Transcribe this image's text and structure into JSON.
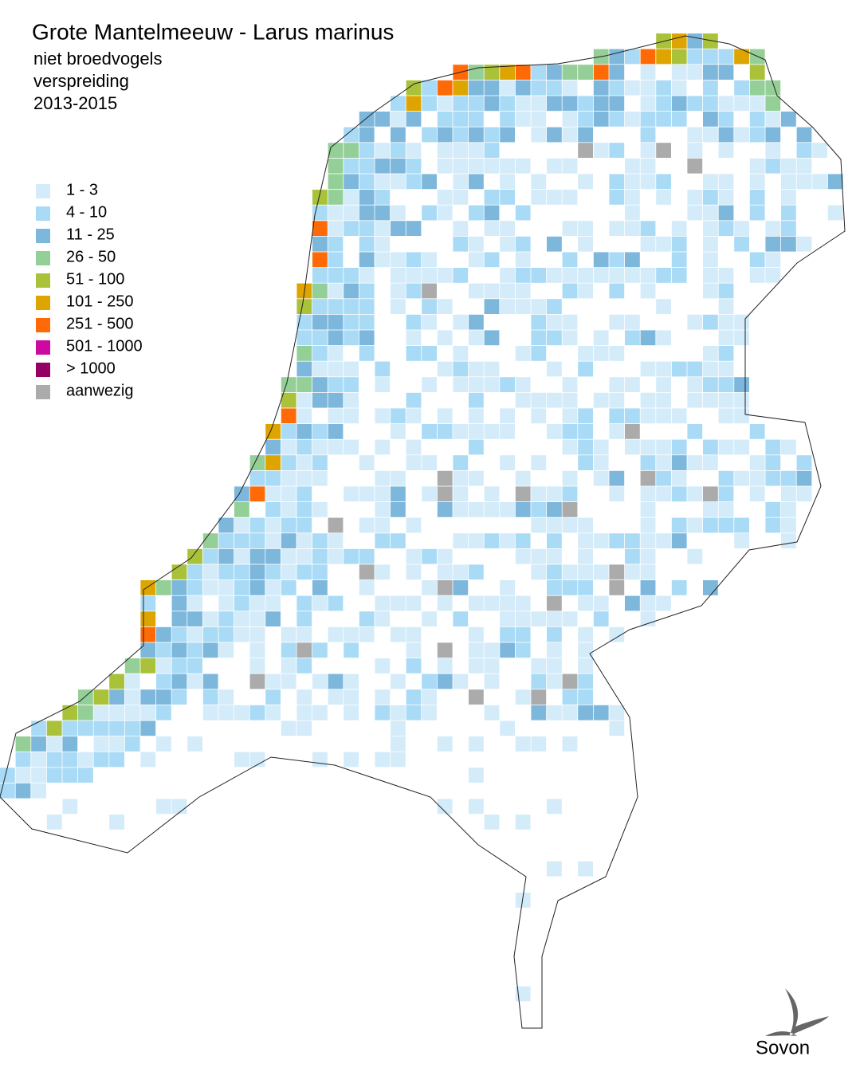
{
  "header": {
    "title": "Grote Mantelmeeuw - Larus marinus",
    "subtitle": [
      "niet broedvogels",
      "verspreiding",
      "2013-2015"
    ]
  },
  "legend": {
    "items": [
      {
        "label": "1 - 3",
        "color": "#d4ebfa"
      },
      {
        "label": "4 - 10",
        "color": "#a9dbf6"
      },
      {
        "label": "11 - 25",
        "color": "#7db7dc"
      },
      {
        "label": "26 - 50",
        "color": "#95cf98"
      },
      {
        "label": "51 - 100",
        "color": "#a9c23a"
      },
      {
        "label": "101 - 250",
        "color": "#dea500"
      },
      {
        "label": "251 - 500",
        "color": "#ff6a06"
      },
      {
        "label": "501 - 1000",
        "color": "#cc0aa0"
      },
      {
        "label": "> 1000",
        "color": "#960063"
      },
      {
        "label": "aanwezig",
        "color": "#ababab"
      }
    ]
  },
  "logo": {
    "text": "Sovon"
  }
}
